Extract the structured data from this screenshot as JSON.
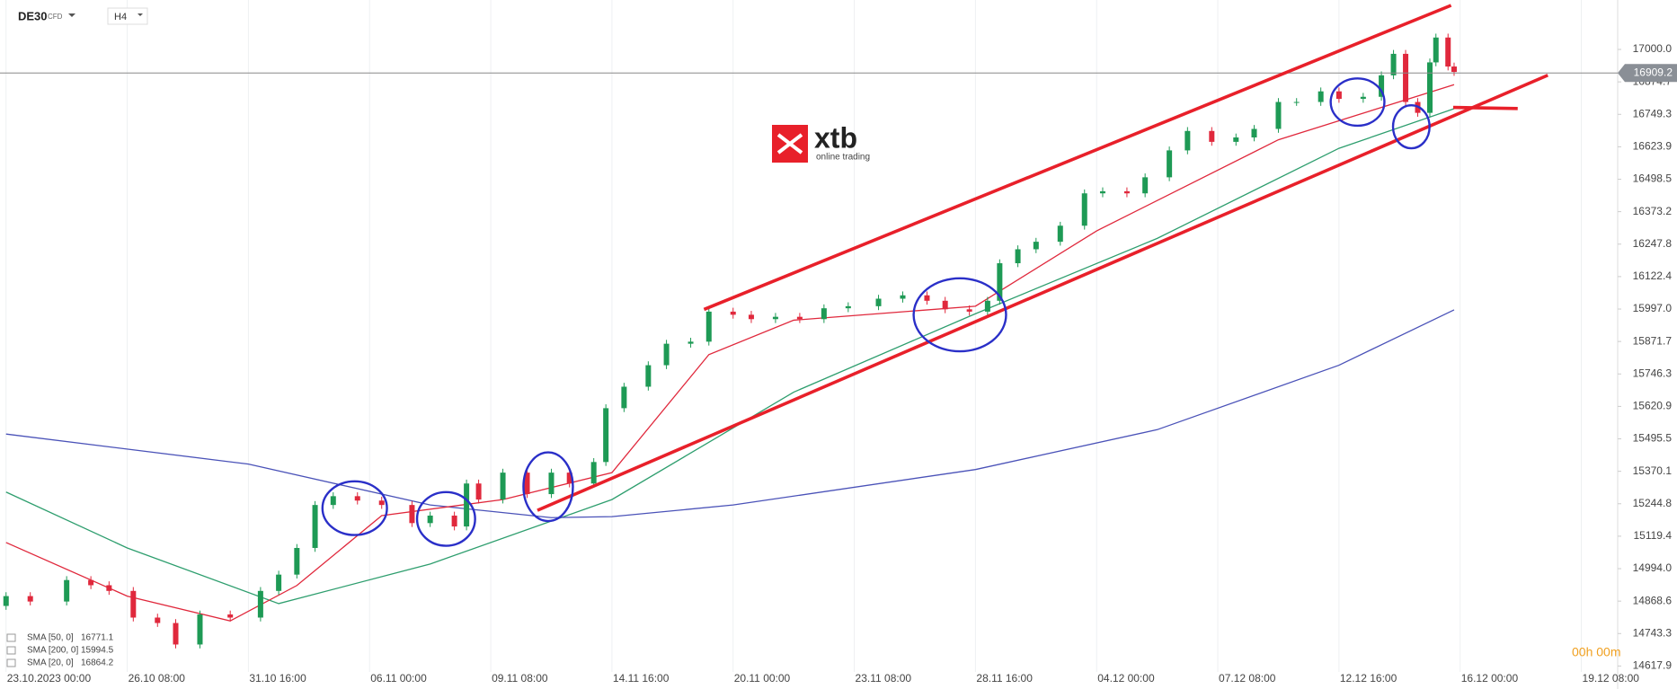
{
  "header": {
    "symbol": "DE30",
    "instrument": "CFD",
    "interval": "H4"
  },
  "logo": {
    "name": "xtb",
    "tagline": "online trading"
  },
  "timer": "00h 00m",
  "chart_data": {
    "type": "candlestick",
    "up_color": "#1e9a55",
    "down_color": "#e0283c",
    "x": [
      0,
      4,
      10,
      14,
      17,
      21,
      25,
      28,
      32,
      37,
      42,
      45,
      48,
      51,
      54,
      58,
      62,
      67,
      70,
      74,
      76,
      78,
      82,
      86,
      90,
      93,
      97,
      99,
      102,
      106,
      109,
      113,
      116,
      120,
      123,
      127,
      131,
      135,
      139,
      144,
      148,
      152,
      155,
      159,
      162,
      164,
      167,
      170,
      174,
      178,
      181,
      185,
      188,
      192,
      195,
      199,
      203,
      206,
      210,
      213,
      217,
      220,
      224,
      227,
      229,
      231,
      233,
      235,
      236,
      238,
      239
    ],
    "open": [
      14850,
      14888,
      14867,
      14950,
      14930,
      14908,
      14805,
      14784,
      14701,
      14817,
      14805,
      14908,
      14971,
      15074,
      15240,
      15274,
      15257,
      15240,
      15170,
      15199,
      15157,
      15323,
      15261,
      15365,
      15282,
      15365,
      15323,
      15406,
      15614,
      15697,
      15780,
      15863,
      15871,
      15987,
      15975,
      15958,
      15967,
      15958,
      16000,
      16008,
      16037,
      16050,
      16029,
      15996,
      15987,
      16029,
      16174,
      16228,
      16257,
      16319,
      16444,
      16452,
      16444,
      16506,
      16610,
      16685,
      16643,
      16660,
      16693,
      16797,
      16797,
      16838,
      16809,
      16817,
      16900,
      16983,
      16797,
      16755,
      16950,
      17046,
      16934
    ],
    "high": [
      14903,
      14903,
      14965,
      14965,
      14945,
      14923,
      14820,
      14799,
      14832,
      14832,
      14923,
      14986,
      15089,
      15255,
      15289,
      15289,
      15272,
      15255,
      15214,
      15214,
      15338,
      15338,
      15380,
      15380,
      15380,
      15380,
      15421,
      15629,
      15712,
      15795,
      15878,
      15886,
      16002,
      16002,
      15990,
      15982,
      15982,
      16015,
      16023,
      16052,
      16065,
      16065,
      16044,
      16011,
      16044,
      16189,
      16243,
      16272,
      16334,
      16459,
      16467,
      16467,
      16521,
      16625,
      16700,
      16700,
      16675,
      16708,
      16812,
      16812,
      16853,
      16853,
      16832,
      16915,
      16998,
      16998,
      16812,
      16965,
      17061,
      17061,
      16949
    ],
    "low": [
      14835,
      14852,
      14852,
      14915,
      14893,
      14790,
      14769,
      14686,
      14686,
      14790,
      14790,
      14893,
      14956,
      15059,
      15225,
      15242,
      15225,
      15155,
      15155,
      15142,
      15142,
      15246,
      15246,
      15267,
      15267,
      15308,
      15308,
      15391,
      15599,
      15682,
      15765,
      15848,
      15856,
      15960,
      15943,
      15943,
      15943,
      15943,
      15985,
      15993,
      16022,
      16014,
      15981,
      15972,
      15972,
      16014,
      16159,
      16213,
      16242,
      16304,
      16429,
      16429,
      16429,
      16491,
      16595,
      16628,
      16628,
      16645,
      16678,
      16782,
      16782,
      16794,
      16794,
      16802,
      16885,
      16782,
      16740,
      16740,
      16935,
      16919,
      16898
    ],
    "close": [
      14888,
      14867,
      14950,
      14930,
      14908,
      14805,
      14784,
      14701,
      14817,
      14805,
      14908,
      14971,
      15074,
      15240,
      15274,
      15257,
      15240,
      15170,
      15199,
      15157,
      15323,
      15261,
      15365,
      15282,
      15365,
      15323,
      15406,
      15614,
      15697,
      15780,
      15863,
      15871,
      15987,
      15975,
      15958,
      15967,
      15958,
      16000,
      16008,
      16037,
      16050,
      16029,
      15996,
      15987,
      16029,
      16174,
      16228,
      16257,
      16319,
      16444,
      16452,
      16444,
      16506,
      16610,
      16685,
      16643,
      16660,
      16693,
      16797,
      16797,
      16838,
      16809,
      16817,
      16900,
      16983,
      16797,
      16755,
      16950,
      17046,
      16934,
      16913
    ],
    "lines": [
      {
        "name": "SMA [50, 0]",
        "last_value": 16771.1,
        "color": "#2e9e6e",
        "x": [
          0,
          20,
          45,
          70,
          100,
          130,
          160,
          190,
          220,
          239
        ],
        "values": [
          15290,
          15074,
          14859,
          15012,
          15261,
          15676,
          15979,
          16270,
          16618,
          16771
        ]
      },
      {
        "name": "SMA [200, 0]",
        "last_value": 15994.5,
        "color": "#4a52b8",
        "x": [
          0,
          40,
          70,
          90,
          100,
          120,
          160,
          190,
          220,
          239
        ],
        "values": [
          15514,
          15398,
          15240,
          15191,
          15195,
          15240,
          15377,
          15531,
          15780,
          15994
        ]
      },
      {
        "name": "SMA [20, 0]",
        "last_value": 16864.2,
        "color": "#e0283c",
        "x": [
          0,
          20,
          37,
          48,
          62,
          82,
          100,
          116,
          130,
          160,
          180,
          210,
          239
        ],
        "values": [
          15095,
          14888,
          14792,
          14929,
          15199,
          15261,
          15365,
          15821,
          15954,
          16008,
          16299,
          16651,
          16864
        ]
      }
    ],
    "last_price": 16909.2,
    "xlim": [
      -1,
      266
    ],
    "xticks": [
      {
        "value": 0,
        "label": "23.10.2023  00:00"
      },
      {
        "value": 20,
        "label": "26.10  08:00"
      },
      {
        "value": 40,
        "label": "31.10  16:00"
      },
      {
        "value": 60,
        "label": "06.11  00:00"
      },
      {
        "value": 80,
        "label": "09.11  08:00"
      },
      {
        "value": 100,
        "label": "14.11  16:00"
      },
      {
        "value": 120,
        "label": "20.11  00:00"
      },
      {
        "value": 140,
        "label": "23.11  08:00"
      },
      {
        "value": 160,
        "label": "28.11  16:00"
      },
      {
        "value": 180,
        "label": "04.12  00:00"
      },
      {
        "value": 200,
        "label": "07.12  08:00"
      },
      {
        "value": 220,
        "label": "12.12  16:00"
      },
      {
        "value": 240,
        "label": "16.12  00:00"
      },
      {
        "value": 260,
        "label": "19.12  08:00"
      }
    ],
    "ylim": [
      14595,
      17191
    ],
    "yticks": [
      14617.9,
      14743.3,
      14868.6,
      {
        "value": 14994,
        "label": "14994.0"
      },
      15119.4,
      15244.8,
      15370.1,
      15495.5,
      15620.9,
      15746.3,
      15871.7,
      {
        "value": 15997,
        "label": "15997.0"
      },
      16122.4,
      16247.8,
      16373.2,
      16498.5,
      16623.9,
      16749.3,
      16874.7,
      {
        "value": 17000,
        "label": "17000.0"
      }
    ],
    "grid": true
  }
}
